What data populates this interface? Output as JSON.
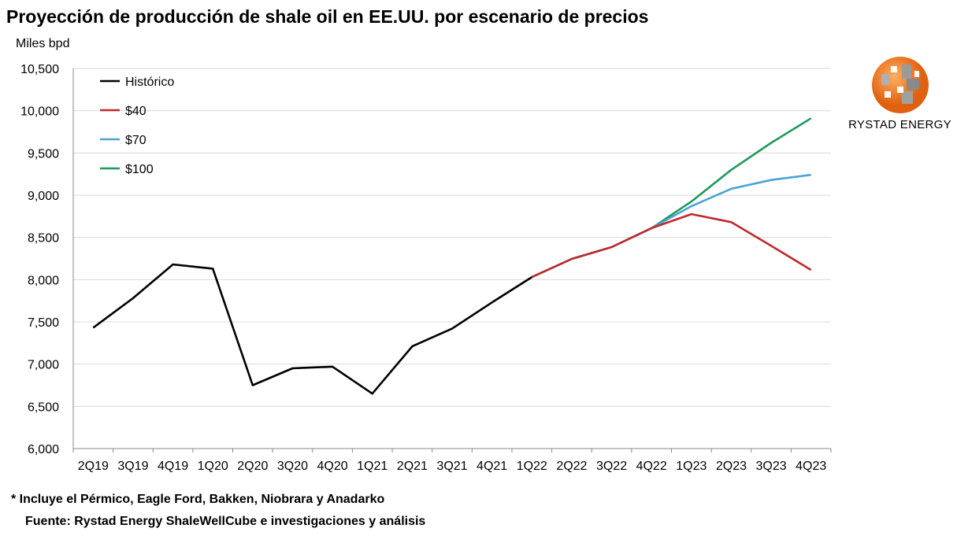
{
  "chart_data": {
    "type": "line",
    "title": "Proyección de producción de shale oil en EE.UU. por escenario de precios",
    "ylabel": "Miles bpd",
    "xlabel": "",
    "ylim": [
      6000,
      10500
    ],
    "yticks": [
      "6,000",
      "6,500",
      "7,000",
      "7,500",
      "8,000",
      "8,500",
      "9,000",
      "9,500",
      "10,000",
      "10,500"
    ],
    "grid": true,
    "legend_position": "top-left",
    "categories": [
      "2Q19",
      "3Q19",
      "4Q19",
      "1Q20",
      "2Q20",
      "3Q20",
      "4Q20",
      "1Q21",
      "2Q21",
      "3Q21",
      "4Q21",
      "1Q22",
      "2Q22",
      "3Q22",
      "4Q22",
      "1Q23",
      "2Q23",
      "3Q23",
      "4Q23"
    ],
    "series": [
      {
        "name": "Histórico",
        "color": "#000000",
        "values": [
          7430,
          7780,
          8180,
          8130,
          6750,
          6950,
          6970,
          6650,
          7210,
          7420,
          7730,
          8030,
          null,
          null,
          null,
          null,
          null,
          null,
          null
        ]
      },
      {
        "name": "$40",
        "color": "#c0282d",
        "values": [
          null,
          null,
          null,
          null,
          null,
          null,
          null,
          null,
          null,
          null,
          null,
          8030,
          8245,
          8385,
          8610,
          8775,
          8680,
          8400,
          8115
        ]
      },
      {
        "name": "$70",
        "color": "#4aa3d6",
        "values": [
          null,
          null,
          null,
          null,
          null,
          null,
          null,
          null,
          null,
          null,
          null,
          8030,
          8245,
          8385,
          8610,
          8870,
          9075,
          9180,
          9240
        ]
      },
      {
        "name": "$100",
        "color": "#1e9a5a",
        "values": [
          null,
          null,
          null,
          null,
          null,
          null,
          null,
          null,
          null,
          null,
          null,
          8030,
          8245,
          8385,
          8610,
          8925,
          9300,
          9620,
          9910
        ]
      }
    ]
  },
  "footnotes": {
    "note": "* Incluye el Pérmico, Eagle Ford, Bakken, Niobrara y Anadarko",
    "source": "Fuente: Rystad Energy ShaleWellCube e investigaciones y análisis"
  },
  "logo": {
    "text": "RYSTAD ENERGY"
  }
}
